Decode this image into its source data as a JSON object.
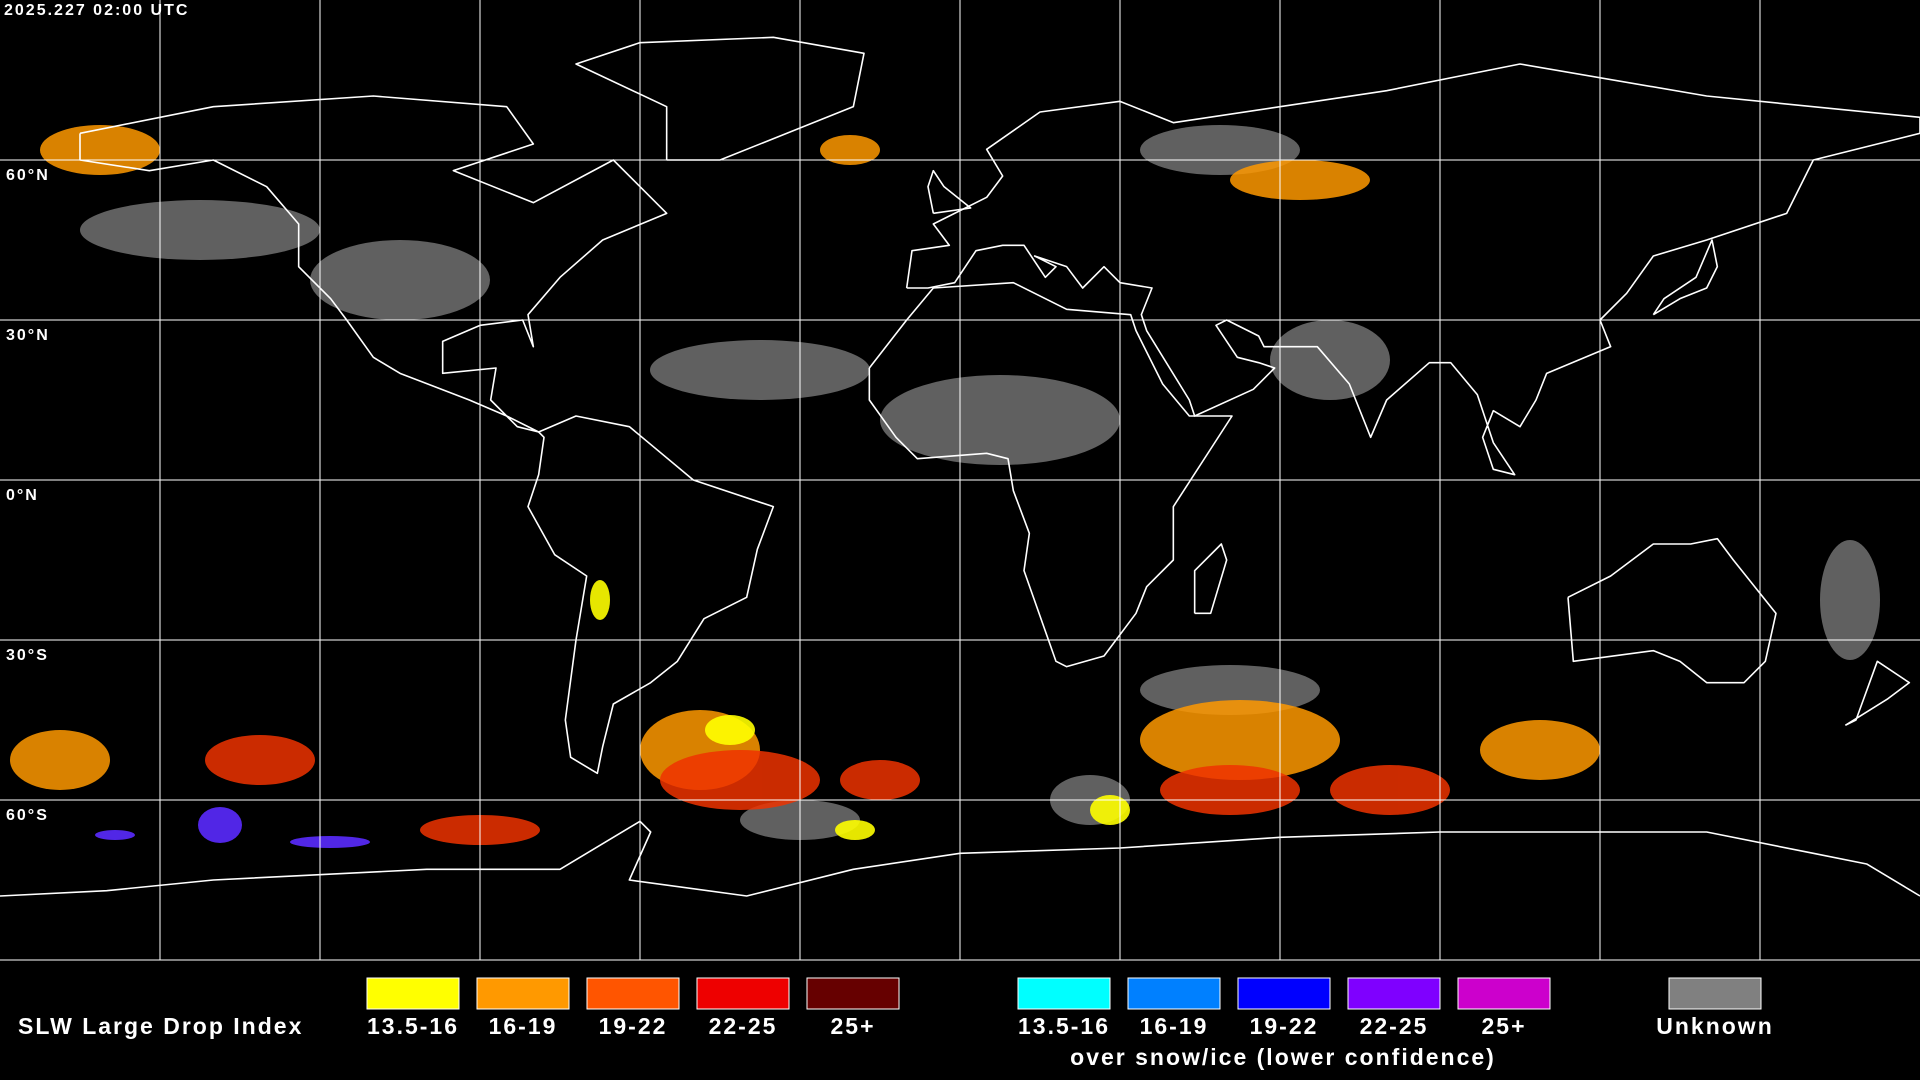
{
  "header": {
    "timestamp": "2025.227 02:00 UTC"
  },
  "map": {
    "lat_labels": [
      "60°N",
      "30°N",
      "0°N",
      "30°S",
      "60°S"
    ]
  },
  "legend": {
    "title": "SLW Large Drop Index",
    "items": [
      {
        "label": "13.5-16",
        "color": "#ffff00"
      },
      {
        "label": "16-19",
        "color": "#ff9900"
      },
      {
        "label": "19-22",
        "color": "#ff5500"
      },
      {
        "label": "22-25",
        "color": "#ee0000"
      },
      {
        "label": "25+",
        "color": "#660000"
      }
    ],
    "snow_items": [
      {
        "label": "13.5-16",
        "color": "#00ffff"
      },
      {
        "label": "16-19",
        "color": "#0080ff"
      },
      {
        "label": "19-22",
        "color": "#0000ff"
      },
      {
        "label": "22-25",
        "color": "#7f00ff"
      },
      {
        "label": "25+",
        "color": "#cc00cc"
      }
    ],
    "snow_caption": "over snow/ice (lower confidence)",
    "unknown": {
      "label": "Unknown",
      "color": "#808080"
    }
  }
}
